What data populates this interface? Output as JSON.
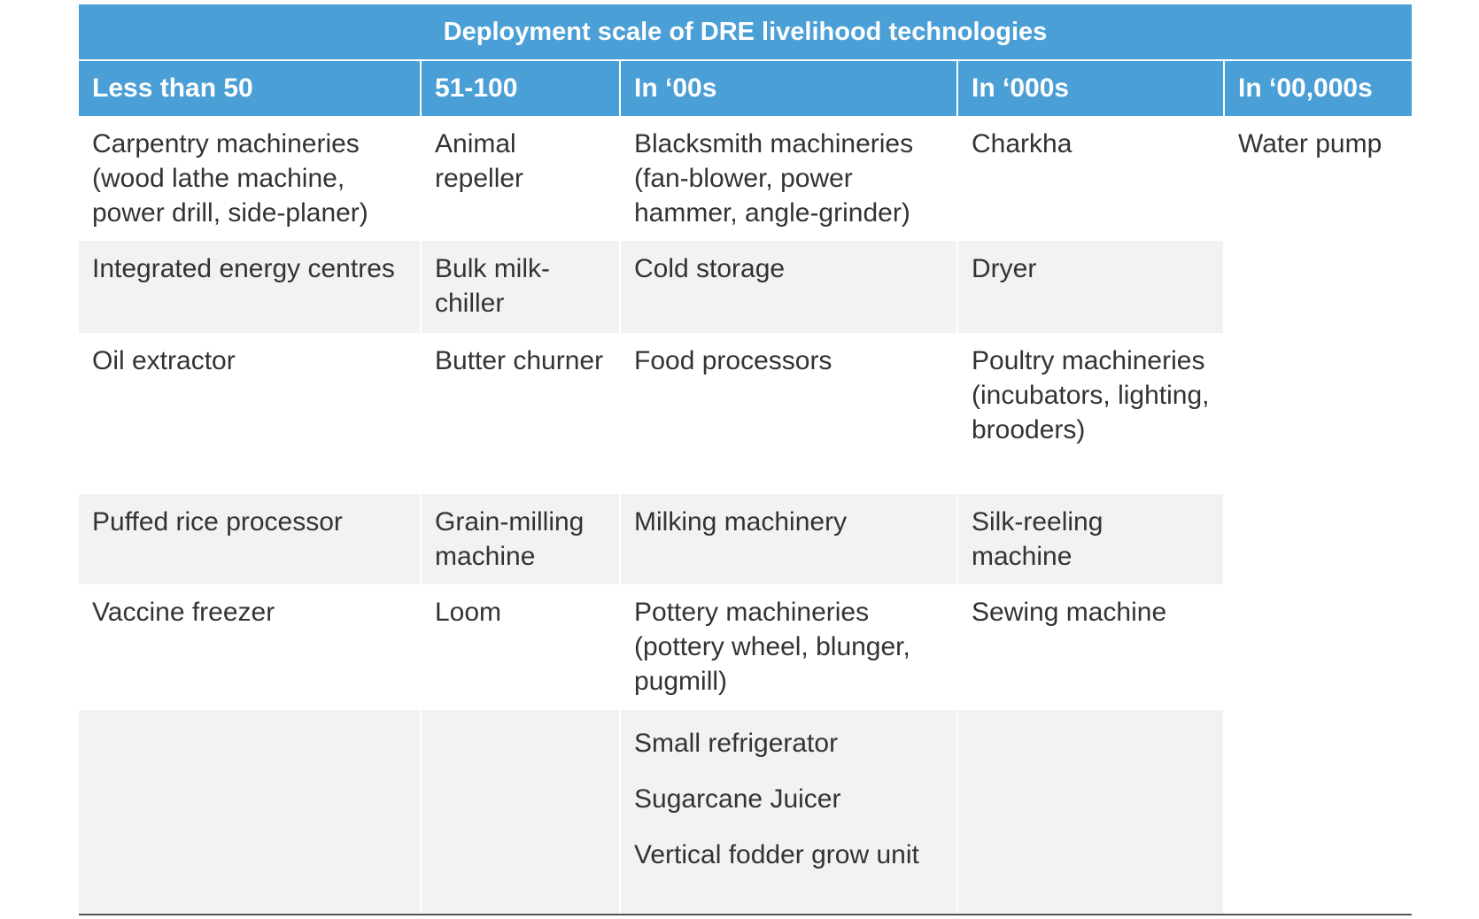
{
  "table": {
    "title": "Deployment scale of DRE livelihood technologies",
    "headers": [
      "Less than 50",
      "51-100",
      "In ‘00s",
      "In ‘000s",
      "In ‘00,000s"
    ],
    "rows": [
      [
        "Carpentry machineries (wood lathe machine, power drill, side-planer)",
        "Animal repeller",
        "Blacksmith machineries (fan-blower, power hammer, angle-grinder)",
        "Charkha"
      ],
      [
        "Integrated energy centres",
        "Bulk milk-chiller",
        "Cold storage",
        "Dryer"
      ],
      [
        "Oil extractor",
        "Butter churner",
        "Food processors",
        "Poultry machineries (incubators, lighting, brooders)"
      ],
      [
        "Puffed rice processor",
        "Grain-milling machine",
        "Milking machinery",
        "Silk-reeling machine"
      ],
      [
        "Vaccine freezer",
        "Loom",
        "Pottery machineries (pottery wheel, blunger, pugmill)",
        "Sewing machine"
      ]
    ],
    "extra_col3": [
      "Small refrigerator",
      "Sugarcane Juicer",
      "Vertical fodder grow unit"
    ],
    "col5_item": "Water pump"
  },
  "colors": {
    "header_bg": "#4a9fd6",
    "row_shade": "#f1f2f4"
  }
}
